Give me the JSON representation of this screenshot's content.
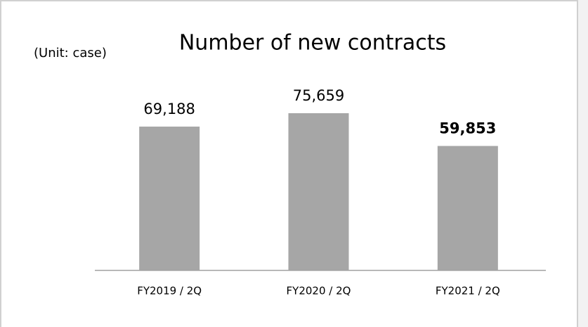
{
  "chart_data": {
    "type": "bar",
    "title": "Number of new contracts",
    "subtitle": "(Unit: case)",
    "categories": [
      "FY2019 / 2Q",
      "FY2020 / 2Q",
      "FY2021 / 2Q"
    ],
    "values": [
      69188,
      75659,
      59853
    ],
    "value_labels": [
      "69,188",
      "75,659",
      "59,853"
    ],
    "color": "#a6a6a6"
  }
}
